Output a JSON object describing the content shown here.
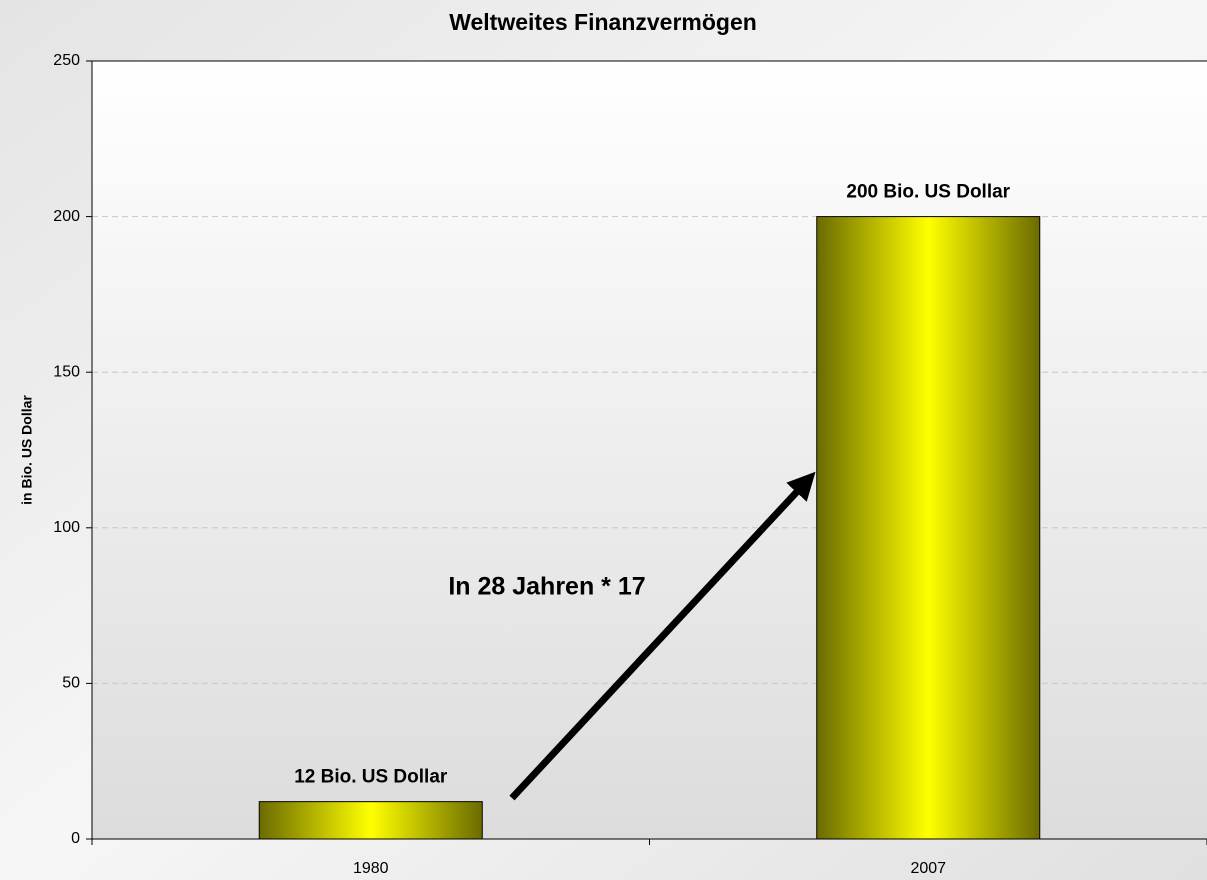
{
  "chart_data": {
    "type": "bar",
    "title": "Weltweites Finanzvermögen",
    "y_label": "in Bio. US Dollar",
    "categories": [
      "1980",
      "2007"
    ],
    "values": [
      12,
      200
    ],
    "value_labels": [
      "12 Bio. US Dollar",
      "200 Bio. US Dollar"
    ],
    "color": "#ffff00",
    "annotation": "In 28 Jahren * 17",
    "ylim": [
      0,
      250
    ],
    "yticks": [
      0,
      50,
      100,
      150,
      200,
      250
    ],
    "grid": true
  }
}
